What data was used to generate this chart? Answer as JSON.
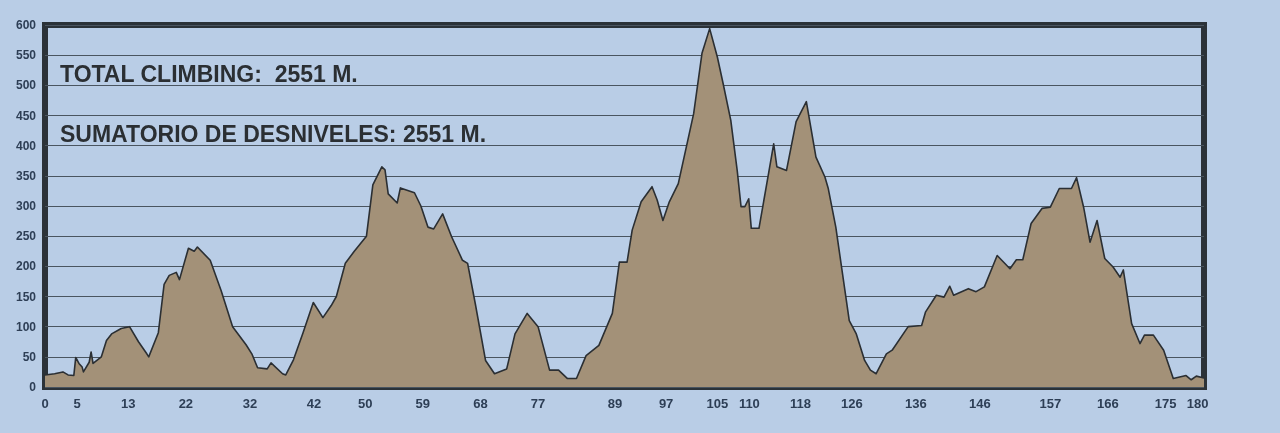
{
  "chart_data": {
    "type": "area",
    "annotations": [
      "TOTAL CLIMBING:  2551 M.",
      "SUMATORIO DE DESNIVELES: 2551 M."
    ],
    "series": [
      {
        "color": "#a39178",
        "x": [
          0,
          1.5,
          2.8,
          3.6,
          4.5,
          4.8,
          5.3,
          5.8,
          6.0,
          6.9,
          7.2,
          7.5,
          8.8,
          9.6,
          10.4,
          11.9,
          13.2,
          14.6,
          15.9,
          16.2,
          17.7,
          18.6,
          19.4,
          20.5,
          21,
          22.4,
          23.3,
          23.8,
          25.8,
          27.5,
          29.3,
          31.4,
          32.3,
          33.2,
          34.7,
          35.3,
          37.1,
          37.6,
          38.8,
          40.3,
          41.9,
          43.4,
          44.7,
          45.5,
          46.9,
          48.3,
          50.2,
          51.2,
          52.6,
          53.1,
          53.6,
          55.0,
          55.5,
          57.7,
          58.7,
          59.8,
          60.7,
          62.1,
          63.5,
          65.2,
          66,
          67.2,
          68.8,
          70.2,
          72.1,
          73.4,
          75.3,
          77,
          78.8,
          80.2,
          81.6,
          83,
          84.5,
          86.5,
          88.6,
          89.7,
          90.9,
          91.7,
          93.1,
          94.8,
          95.6,
          96.5,
          97.5,
          98.9,
          101.3,
          102.6,
          103.8,
          105,
          105.9,
          107.1,
          108.1,
          108.7,
          109.3,
          109.9,
          110.3,
          111.5,
          113.0,
          113.8,
          114.3,
          115.8,
          117.3,
          118.9,
          120.4,
          121.8,
          122.3,
          123.5,
          125.6,
          126.7,
          128,
          128.9,
          129.8,
          131.4,
          132.3,
          134.8,
          136.9,
          137.5,
          139.2,
          140.4,
          141.3,
          141.9,
          144.2,
          145.4,
          146.7,
          148.7,
          150.7,
          151.7,
          152.7,
          154,
          155.7,
          157,
          158.4,
          160.3,
          161.1,
          162.2,
          163.2,
          164.3,
          165.5,
          166.8,
          167.9,
          168.4,
          169.7,
          171,
          171.7,
          173.1,
          174.7,
          176.2,
          178.2,
          179,
          179.8,
          181
        ],
        "values": [
          20,
          22,
          25,
          20,
          19,
          49,
          39,
          33,
          25,
          41,
          58,
          39,
          50,
          77,
          88,
          97,
          100,
          75,
          55,
          50,
          90,
          170,
          185,
          190,
          178,
          230,
          225,
          232,
          210,
          160,
          100,
          70,
          55,
          32,
          30,
          40,
          22,
          20,
          45,
          90,
          140,
          115,
          135,
          150,
          205,
          225,
          250,
          335,
          365,
          360,
          320,
          305,
          330,
          322,
          300,
          265,
          262,
          287,
          249,
          210,
          205,
          138,
          44,
          22,
          30,
          88,
          122,
          100,
          28,
          28,
          14,
          14,
          52,
          69,
          122,
          207,
          207,
          260,
          307,
          332,
          310,
          276,
          307,
          337,
          453,
          553,
          594,
          547,
          503,
          442,
          359,
          299,
          299,
          312,
          263,
          263,
          354,
          403,
          365,
          359,
          440,
          473,
          381,
          348,
          330,
          265,
          110,
          88,
          44,
          28,
          22,
          55,
          61,
          100,
          102,
          124,
          152,
          149,
          167,
          152,
          163,
          158,
          166,
          218,
          196,
          211,
          211,
          271,
          296,
          298,
          329,
          329,
          347,
          298,
          240,
          276,
          213,
          199,
          182,
          194,
          105,
          72,
          86,
          86,
          61,
          14,
          19,
          12,
          18,
          15
        ]
      }
    ],
    "xlim": [
      0,
      181
    ],
    "xticks": [
      0,
      5,
      13,
      22,
      32,
      42,
      50,
      59,
      68,
      77,
      89,
      97,
      105,
      110,
      118,
      126,
      136,
      146,
      157,
      166,
      175,
      180
    ],
    "ylim": [
      0,
      600
    ],
    "yticks": [
      0,
      50,
      100,
      150,
      200,
      250,
      300,
      350,
      400,
      450,
      500,
      550,
      600
    ],
    "grid": "y",
    "marker": "none",
    "line_style": "solid"
  }
}
